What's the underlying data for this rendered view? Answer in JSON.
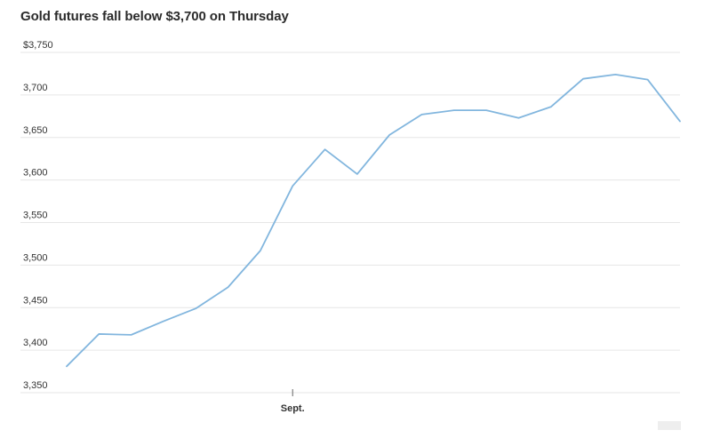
{
  "chart_data": {
    "type": "line",
    "title": "Gold futures fall below $3,700 on Thursday",
    "xlabel": "",
    "ylabel": "",
    "y_tick_labels": [
      "$3,750",
      "3,700",
      "3,650",
      "3,600",
      "3,550",
      "3,500",
      "3,450",
      "3,400",
      "3,350"
    ],
    "y_ticks": [
      3750,
      3700,
      3650,
      3600,
      3550,
      3500,
      3450,
      3400,
      3350
    ],
    "ylim": [
      3350,
      3750
    ],
    "x_tick_label": "Sept.",
    "x_tick_index": 7,
    "grid": true,
    "series": [
      {
        "color": "#82b6de",
        "values": [
          3381,
          3419,
          3418,
          3434,
          3449,
          3474,
          3517,
          3593,
          3636,
          3607,
          3653,
          3677,
          3682,
          3682,
          3673,
          3686,
          3719,
          3724,
          3718,
          3669
        ]
      }
    ]
  }
}
